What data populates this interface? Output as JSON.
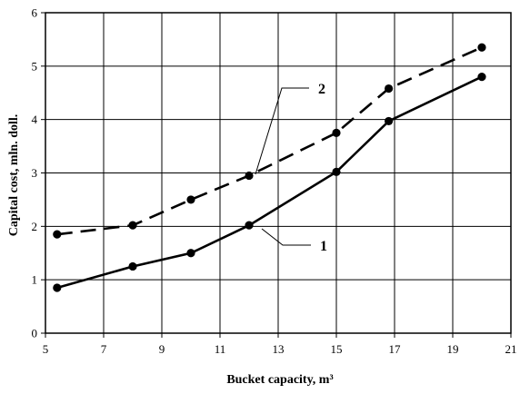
{
  "chart_data": {
    "type": "line",
    "xlabel": "Bucket capacity, m³",
    "ylabel": "Capital cost, mln. doll.",
    "xlim": [
      5,
      21
    ],
    "ylim": [
      0,
      6
    ],
    "xticks": [
      "5",
      "7",
      "9",
      "11",
      "13",
      "15",
      "17",
      "19",
      "21"
    ],
    "yticks": [
      "0",
      "1",
      "2",
      "3",
      "4",
      "5",
      "6"
    ],
    "grid": true,
    "series": [
      {
        "name": "1",
        "style": "solid",
        "x": [
          5.4,
          8,
          10,
          12,
          15,
          16.8,
          20
        ],
        "y": [
          0.85,
          1.25,
          1.5,
          2.02,
          3.02,
          3.97,
          4.8
        ]
      },
      {
        "name": "2",
        "style": "dashed",
        "x": [
          5.4,
          8,
          10,
          12,
          15,
          16.8,
          20
        ],
        "y": [
          1.85,
          2.02,
          2.5,
          2.95,
          3.75,
          4.58,
          5.35
        ]
      }
    ]
  }
}
